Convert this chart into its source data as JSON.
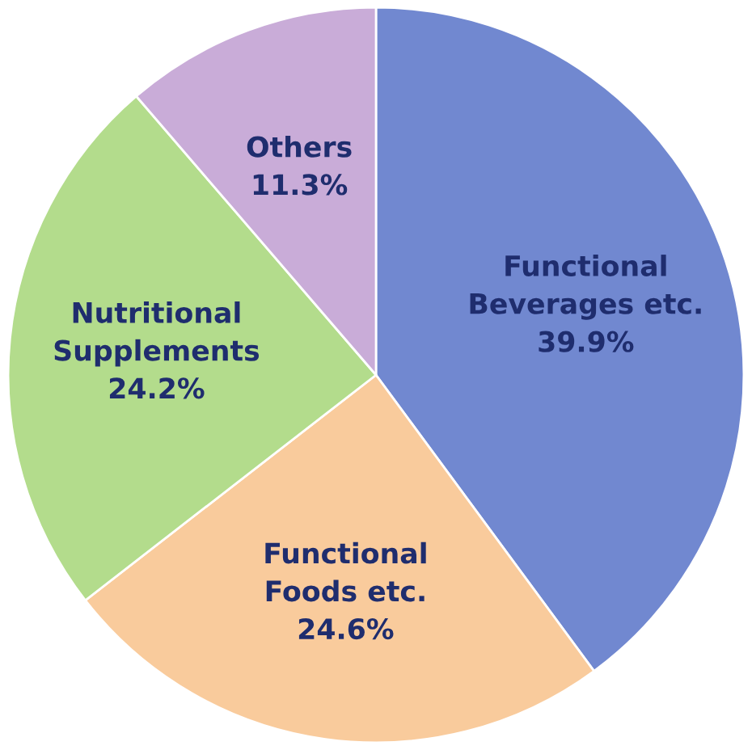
{
  "chart_data": {
    "type": "pie",
    "categories": [
      "Functional\nBeverages etc.",
      "Functional\nFoods etc.",
      "Nutritional\nSupplements",
      "Others"
    ],
    "values": [
      39.9,
      24.6,
      24.2,
      11.3
    ],
    "value_labels": [
      "39.9%",
      "24.6%",
      "24.2%",
      "11.3%"
    ],
    "colors": [
      "#7188d0",
      "#f9cb9c",
      "#b3dc8c",
      "#c9acd8"
    ],
    "legend": false
  }
}
